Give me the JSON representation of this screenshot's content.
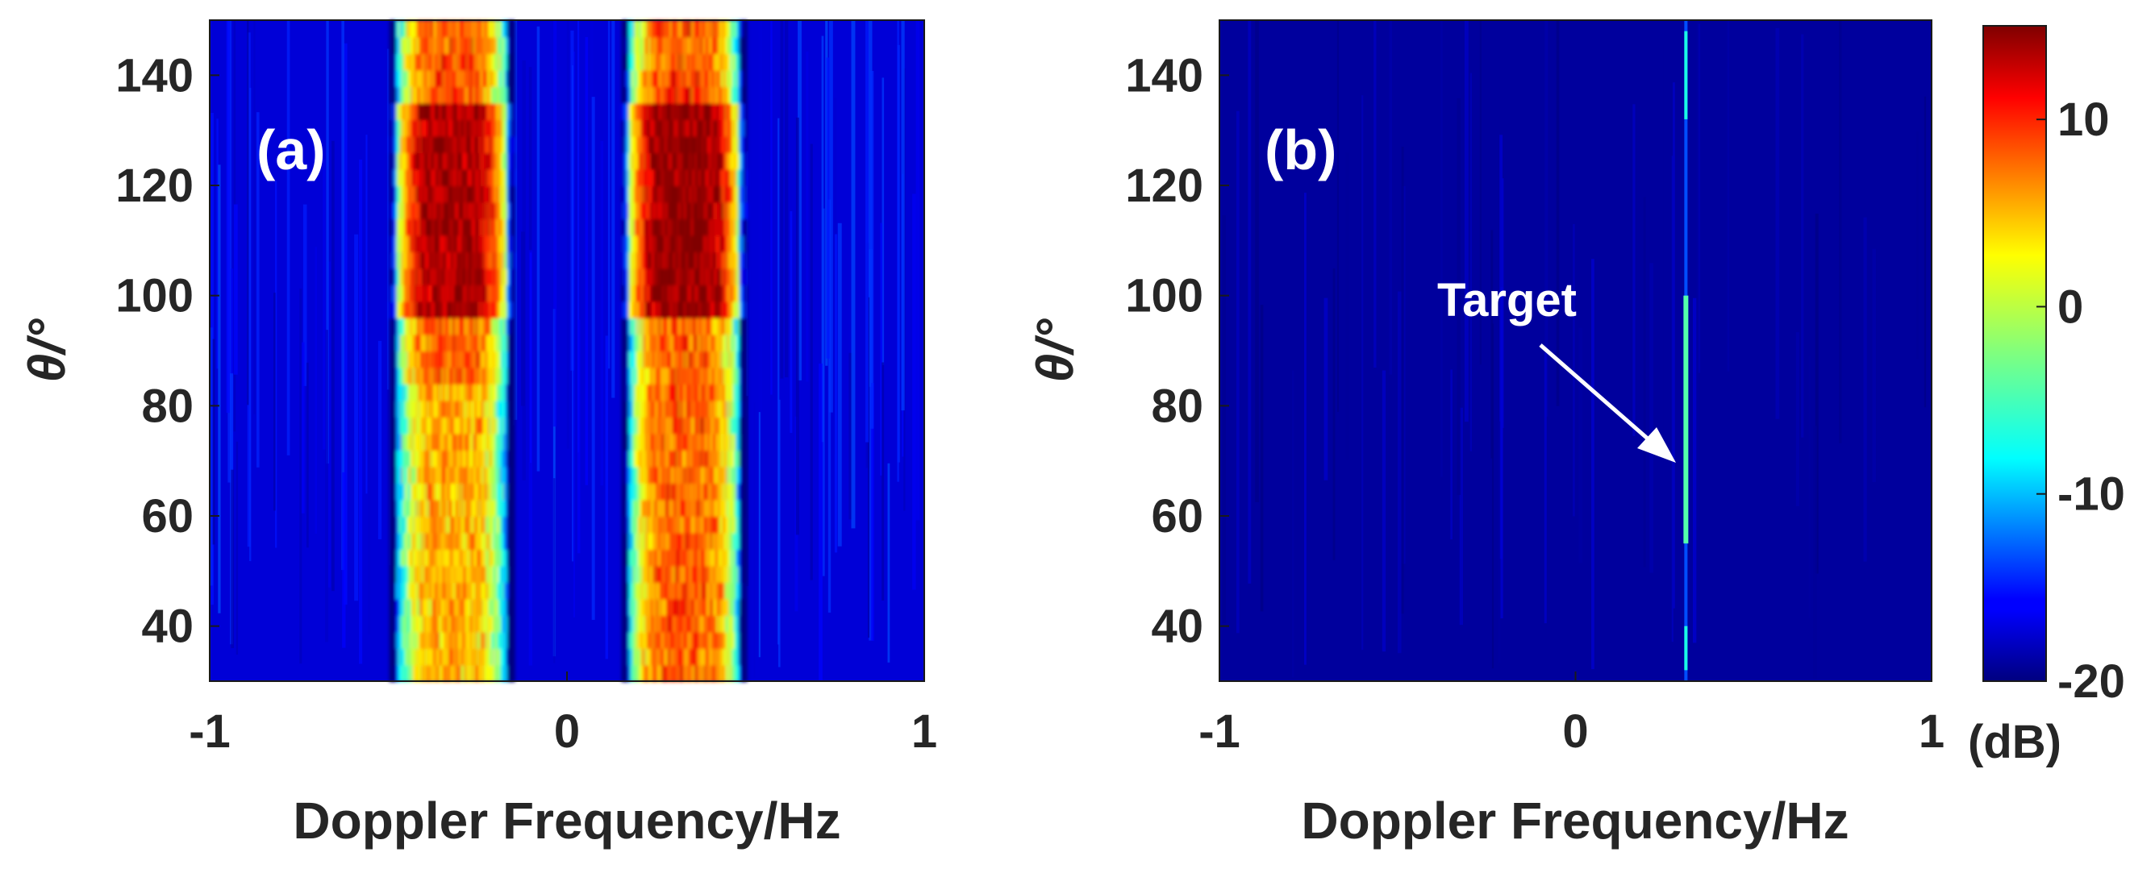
{
  "chart_data": [
    {
      "type": "heatmap",
      "panel_label": "(a)",
      "xlabel": "Doppler Frequency/Hz",
      "ylabel": "θ/°",
      "xlim": [
        -1,
        1
      ],
      "ylim": [
        30,
        150
      ],
      "x_ticks": [
        -1,
        0,
        1
      ],
      "x_tick_labels": [
        "-1",
        "0",
        "1"
      ],
      "y_ticks": [
        40,
        60,
        80,
        100,
        120,
        140
      ],
      "y_tick_labels": [
        "40",
        "60",
        "80",
        "100",
        "120",
        "140"
      ],
      "colormap": "jet",
      "clim": [
        -20,
        15
      ],
      "background_db": -17,
      "bands": [
        {
          "name": "negative Bragg line",
          "x_start": -0.5,
          "x_end": -0.15,
          "peak_db": 14
        },
        {
          "name": "positive Bragg line",
          "x_start": 0.15,
          "x_end": 0.5,
          "peak_db": 14
        }
      ]
    },
    {
      "type": "heatmap",
      "panel_label": "(b)",
      "xlabel": "Doppler Frequency/Hz",
      "ylabel": "θ/°",
      "xlim": [
        -1,
        1
      ],
      "ylim": [
        30,
        150
      ],
      "x_ticks": [
        -1,
        0,
        1
      ],
      "x_tick_labels": [
        "-1",
        "0",
        "1"
      ],
      "y_ticks": [
        40,
        60,
        80,
        100,
        120,
        140
      ],
      "y_tick_labels": [
        "40",
        "60",
        "80",
        "100",
        "120",
        "140"
      ],
      "colormap": "jet",
      "clim": [
        -20,
        15
      ],
      "background_db": -19,
      "target_line": {
        "x": 0.31,
        "y_start": 30,
        "y_end": 150,
        "strong_y_range": [
          55,
          100
        ],
        "peak_db": -4
      },
      "annotation": {
        "text": "Target",
        "points_to": {
          "x": 0.31,
          "y": 70
        },
        "label_at": {
          "x": 0.05,
          "y": 97
        }
      }
    }
  ],
  "colorbar": {
    "ticks": [
      -20,
      -10,
      0,
      10
    ],
    "tick_labels": [
      "-20",
      "-10",
      "0",
      "10"
    ],
    "range": [
      -20,
      15
    ],
    "unit_label": "(dB)"
  }
}
